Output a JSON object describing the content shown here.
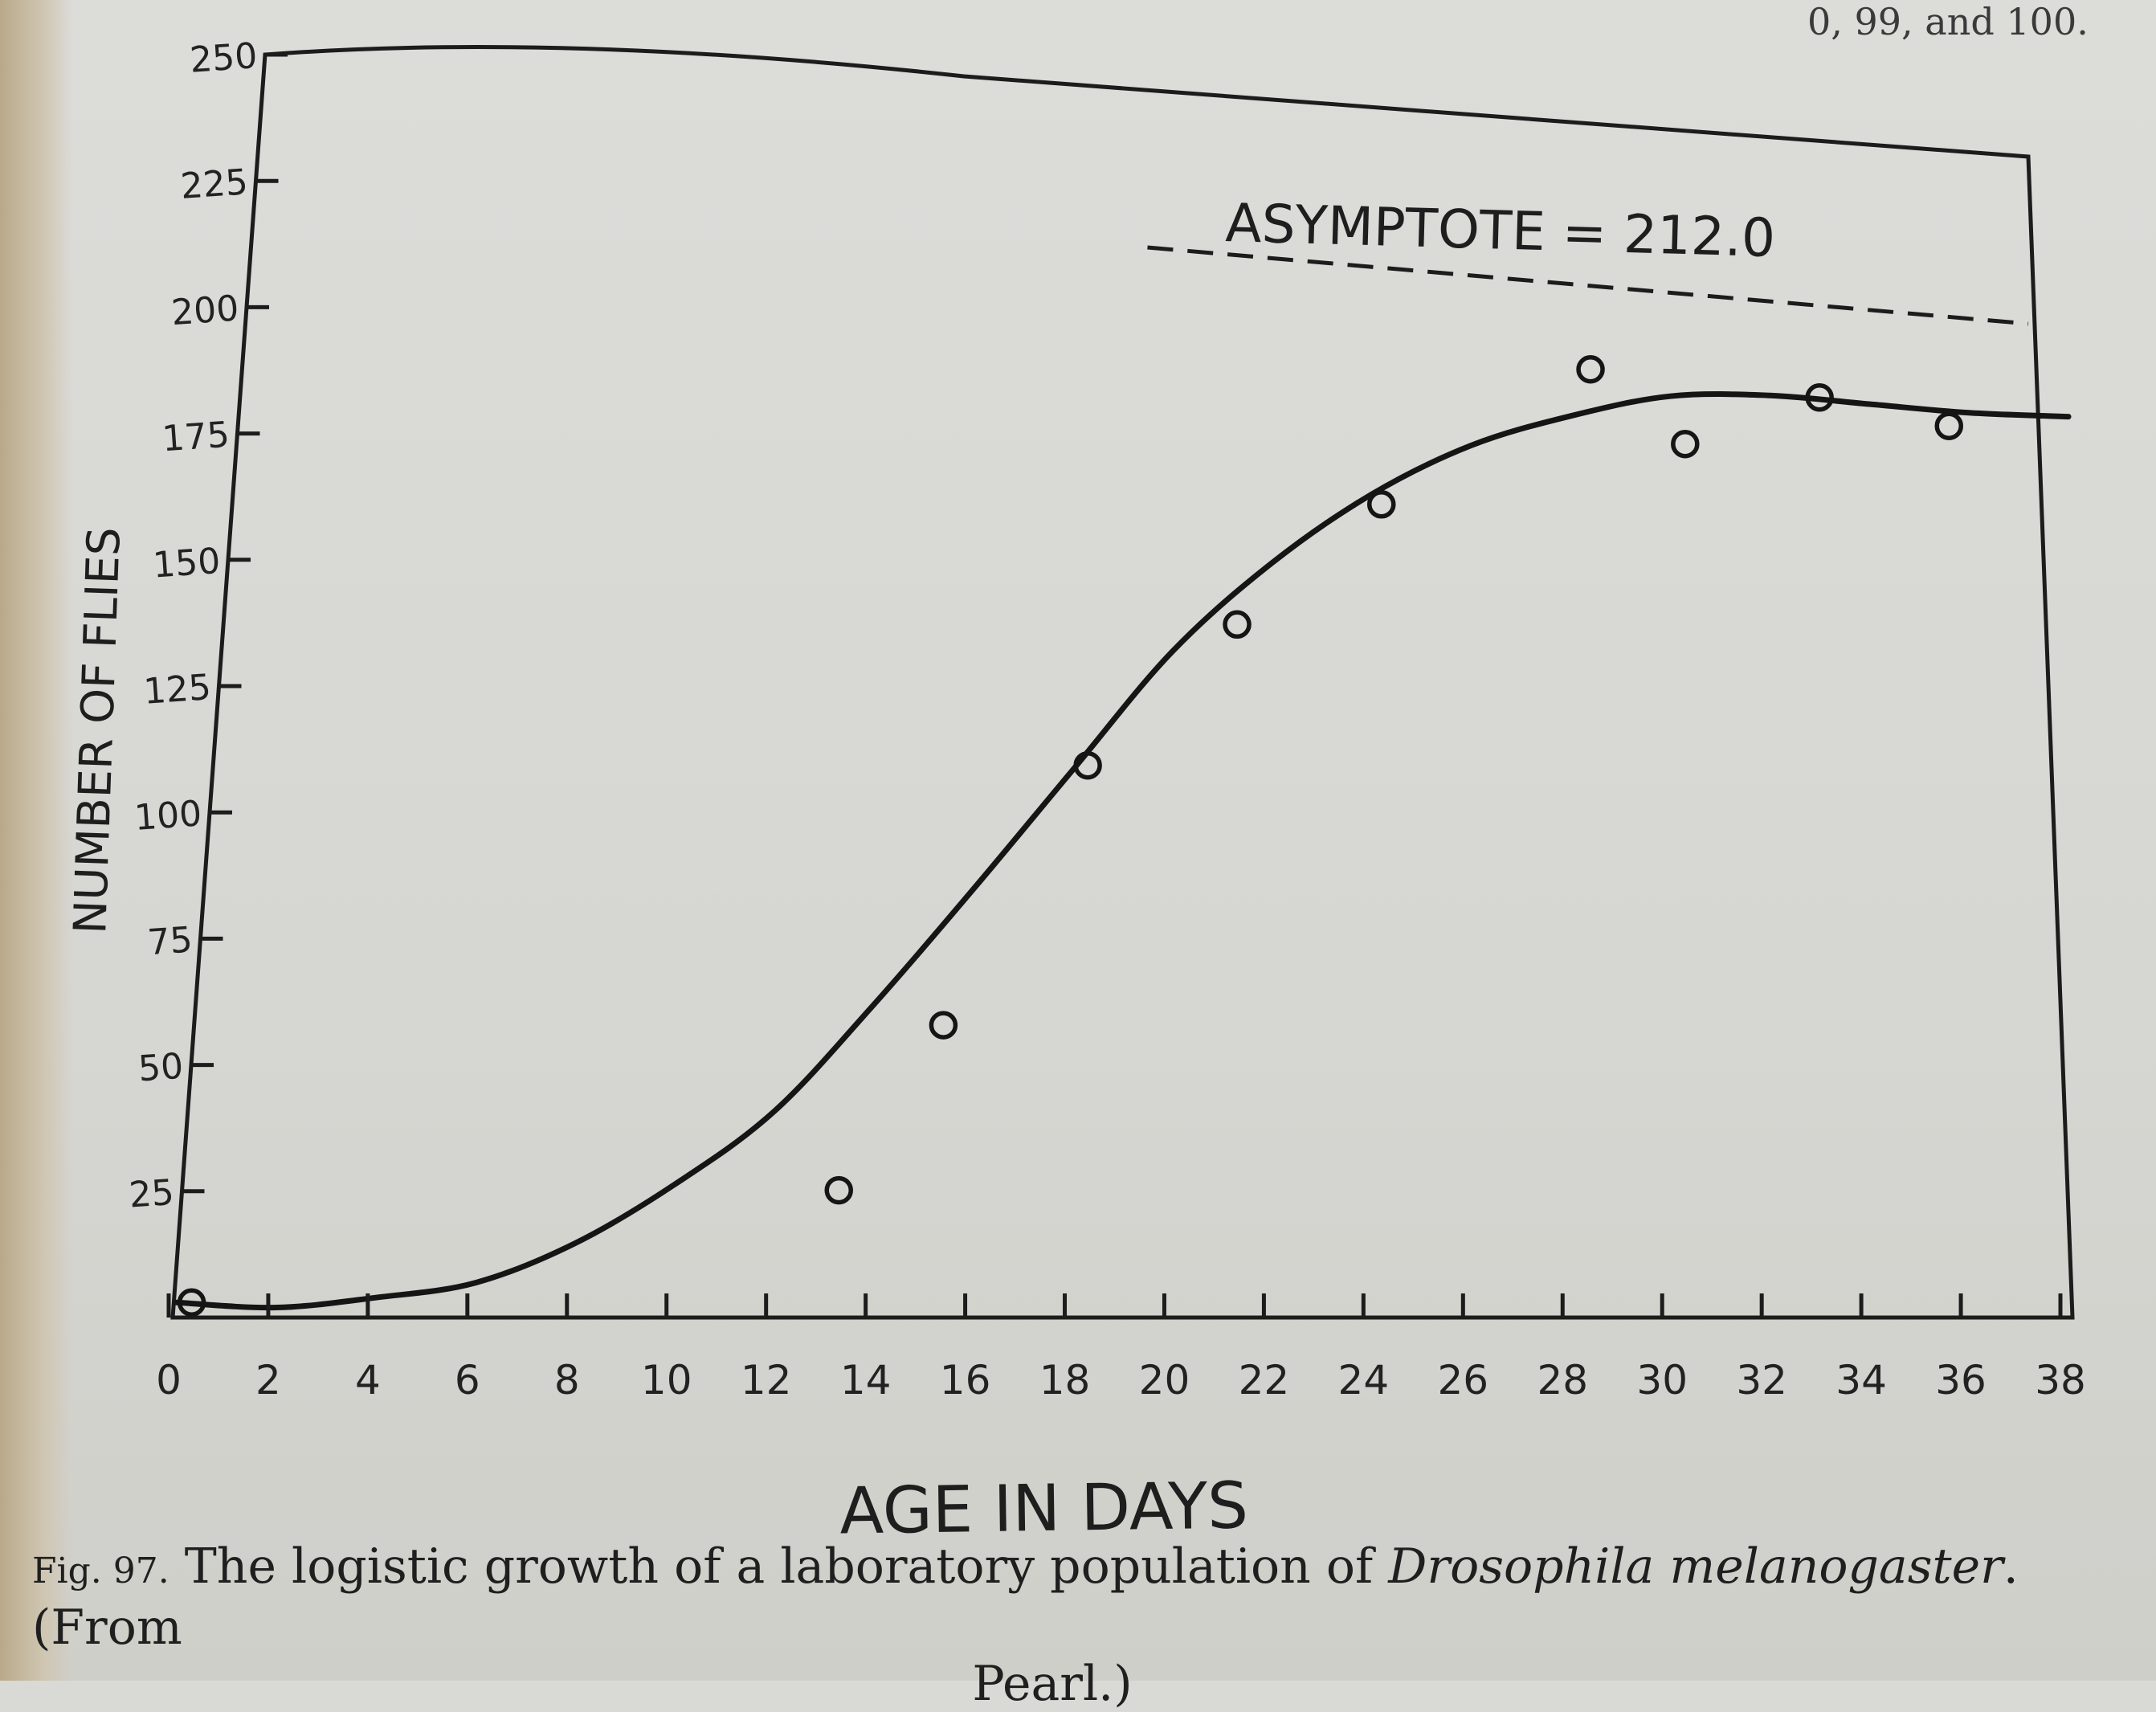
{
  "header_fragment": "0, 99, and 100.",
  "caption": {
    "fig_label": "Fig. 97.",
    "text_before": " The logistic growth of a laboratory population of ",
    "species": "Drosophila melanogaster",
    "text_after": ". (From",
    "line2": "Pearl.)"
  },
  "chart_data": {
    "type": "scatter",
    "xlabel": "AGE IN DAYS",
    "ylabel": "NUMBER OF FLIES",
    "xlim": [
      0,
      38
    ],
    "ylim": [
      0,
      250
    ],
    "x_ticks": [
      0,
      2,
      4,
      6,
      8,
      10,
      12,
      14,
      16,
      18,
      20,
      22,
      24,
      26,
      28,
      30,
      32,
      34,
      36,
      38
    ],
    "y_ticks": [
      25,
      50,
      75,
      100,
      125,
      150,
      175,
      200,
      225,
      250
    ],
    "grid": false,
    "annotation": "ASYMPTOTE = 212.0",
    "asymptote": 212.0,
    "series": [
      {
        "kind": "observed",
        "marker": "open-circle",
        "x": [
          0.3,
          13.3,
          15.4,
          18.3,
          21.3,
          24.2,
          28.4,
          30.3,
          33.0,
          35.6
        ],
        "y": [
          3,
          26,
          60,
          114,
          144,
          170,
          200,
          185,
          196,
          191
        ]
      },
      {
        "kind": "fitted",
        "line": "solid",
        "x": [
          0,
          2,
          4,
          6,
          8,
          10,
          12,
          14,
          16,
          18,
          20,
          22,
          24,
          26,
          28,
          30,
          32,
          34,
          36,
          38
        ],
        "y": [
          3,
          2,
          4,
          7,
          15,
          27,
          42,
          64,
          88,
          113,
          138,
          157,
          172,
          183,
          190,
          195,
          196,
          195,
          194,
          194
        ]
      }
    ]
  }
}
